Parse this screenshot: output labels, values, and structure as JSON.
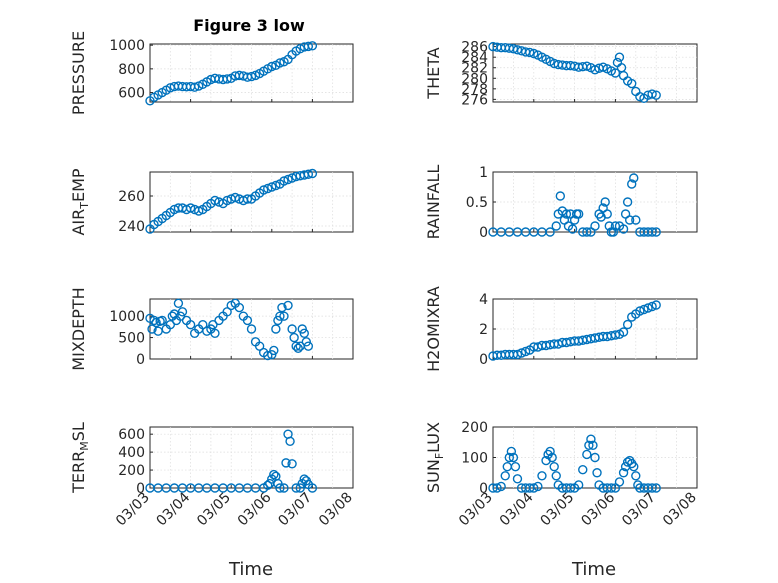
{
  "chart_data": {
    "type": "scatter",
    "title": "Figure 3 low",
    "marker": "circle",
    "colors": {
      "series": "#0072BD",
      "axes": "#262626",
      "grid": "#dcdcdc"
    },
    "grid": true,
    "x_ticks": [
      "03/03",
      "03/04",
      "03/05",
      "03/06",
      "03/07",
      "03/08"
    ],
    "xlabel": "Time",
    "panels": [
      {
        "id": "pressure",
        "ylabel": "PRESSURE",
        "ylabel_sub": "",
        "ylabel_tail": "",
        "ylim": [
          520,
          1010
        ],
        "yticks": [
          600,
          800,
          1000
        ],
        "ytick_labels": [
          "600",
          "800",
          "1000"
        ],
        "x": [
          0,
          0.1,
          0.2,
          0.3,
          0.4,
          0.5,
          0.6,
          0.7,
          0.8,
          0.9,
          1.0,
          1.1,
          1.2,
          1.3,
          1.4,
          1.5,
          1.6,
          1.7,
          1.8,
          1.9,
          2.0,
          2.1,
          2.2,
          2.3,
          2.4,
          2.5,
          2.6,
          2.7,
          2.8,
          2.9,
          3.0,
          3.1,
          3.2,
          3.3,
          3.4,
          3.5,
          3.6,
          3.7,
          3.8,
          3.9,
          4.0
        ],
        "y": [
          530,
          560,
          580,
          600,
          620,
          640,
          650,
          655,
          650,
          648,
          650,
          645,
          655,
          670,
          690,
          710,
          720,
          715,
          710,
          715,
          720,
          740,
          745,
          740,
          730,
          735,
          745,
          760,
          780,
          800,
          820,
          830,
          850,
          860,
          880,
          920,
          950,
          970,
          985,
          990,
          995
        ]
      },
      {
        "id": "theta",
        "ylabel": "THETA",
        "ylabel_sub": "",
        "ylabel_tail": "",
        "ylim": [
          275.5,
          286.5
        ],
        "yticks": [
          276,
          278,
          280,
          282,
          284,
          286
        ],
        "ytick_labels": [
          "276",
          "278",
          "280",
          "282",
          "284",
          "286"
        ],
        "x": [
          0,
          0.1,
          0.2,
          0.3,
          0.4,
          0.5,
          0.6,
          0.7,
          0.8,
          0.9,
          1.0,
          1.1,
          1.2,
          1.3,
          1.4,
          1.5,
          1.6,
          1.7,
          1.8,
          1.9,
          2.0,
          2.1,
          2.2,
          2.3,
          2.4,
          2.5,
          2.6,
          2.7,
          2.8,
          2.9,
          3.0,
          3.05,
          3.1,
          3.15,
          3.2,
          3.3,
          3.4,
          3.5,
          3.6,
          3.7,
          3.8,
          3.9,
          4.0
        ],
        "y": [
          286,
          285.9,
          285.8,
          285.8,
          285.7,
          285.6,
          285.4,
          285.2,
          285,
          284.9,
          284.7,
          284.4,
          284,
          283.6,
          283.2,
          282.8,
          282.6,
          282.5,
          282.4,
          282.4,
          282.3,
          282.1,
          282.2,
          282.3,
          282.0,
          281.6,
          281.9,
          282.1,
          281.8,
          281.4,
          281.0,
          283.0,
          284.0,
          282.0,
          280.5,
          279.5,
          279.0,
          277.5,
          276.5,
          276.2,
          276.8,
          277.0,
          276.8
        ]
      },
      {
        "id": "air_temp",
        "ylabel": "AIR",
        "ylabel_sub": "T",
        "ylabel_tail": "EMP",
        "ylim": [
          236,
          276
        ],
        "yticks": [
          240,
          260
        ],
        "ytick_labels": [
          "240",
          "260"
        ],
        "x": [
          0,
          0.1,
          0.2,
          0.3,
          0.4,
          0.5,
          0.6,
          0.7,
          0.8,
          0.9,
          1.0,
          1.1,
          1.2,
          1.3,
          1.4,
          1.5,
          1.6,
          1.7,
          1.8,
          1.9,
          2.0,
          2.1,
          2.2,
          2.3,
          2.4,
          2.5,
          2.6,
          2.7,
          2.8,
          2.9,
          3.0,
          3.1,
          3.2,
          3.3,
          3.4,
          3.5,
          3.6,
          3.7,
          3.8,
          3.9,
          4.0
        ],
        "y": [
          238,
          241,
          243,
          245,
          247,
          249,
          251,
          252,
          252,
          251,
          252,
          251,
          250,
          251,
          253,
          255,
          257,
          256,
          255,
          257,
          258,
          259,
          258,
          257,
          258,
          258,
          260,
          262,
          264,
          265,
          266,
          267,
          268,
          270,
          271,
          272,
          273,
          273.5,
          274,
          274.5,
          275
        ]
      },
      {
        "id": "rainfall",
        "ylabel": "RAINFALL",
        "ylabel_sub": "",
        "ylabel_tail": "",
        "ylim": [
          0,
          1
        ],
        "yticks": [
          0,
          0.5,
          1
        ],
        "ytick_labels": [
          "0",
          "0.5",
          "1"
        ],
        "x": [
          0,
          0.2,
          0.4,
          0.6,
          0.8,
          1.0,
          1.2,
          1.4,
          1.55,
          1.6,
          1.65,
          1.7,
          1.75,
          1.8,
          1.85,
          1.9,
          1.95,
          2.0,
          2.05,
          2.1,
          2.2,
          2.3,
          2.4,
          2.5,
          2.6,
          2.65,
          2.7,
          2.75,
          2.8,
          2.85,
          2.9,
          2.95,
          3.0,
          3.1,
          3.2,
          3.25,
          3.3,
          3.35,
          3.4,
          3.45,
          3.5,
          3.6,
          3.7,
          3.8,
          3.9,
          4.0
        ],
        "y": [
          0,
          0,
          0,
          0,
          0,
          0,
          0,
          0,
          0.1,
          0.3,
          0.6,
          0.35,
          0.2,
          0.3,
          0.1,
          0.3,
          0.05,
          0.2,
          0.3,
          0.3,
          0,
          0,
          0,
          0.1,
          0.3,
          0.25,
          0.4,
          0.5,
          0.3,
          0.1,
          0,
          0,
          0.1,
          0.1,
          0.05,
          0.3,
          0.5,
          0.2,
          0.8,
          0.9,
          0.2,
          0,
          0,
          0,
          0,
          0
        ]
      },
      {
        "id": "mixdepth",
        "ylabel": "MIXDEPTH",
        "ylabel_sub": "",
        "ylabel_tail": "",
        "ylim": [
          0,
          1400
        ],
        "yticks": [
          0,
          500,
          1000
        ],
        "ytick_labels": [
          "0",
          "500",
          "1000"
        ],
        "x": [
          0,
          0.05,
          0.1,
          0.15,
          0.2,
          0.25,
          0.3,
          0.4,
          0.5,
          0.55,
          0.6,
          0.65,
          0.7,
          0.75,
          0.8,
          0.9,
          1.0,
          1.1,
          1.2,
          1.3,
          1.4,
          1.5,
          1.55,
          1.6,
          1.7,
          1.8,
          1.9,
          2.0,
          2.1,
          2.2,
          2.3,
          2.4,
          2.5,
          2.6,
          2.7,
          2.8,
          2.9,
          3.0,
          3.05,
          3.1,
          3.15,
          3.2,
          3.25,
          3.3,
          3.4,
          3.5,
          3.55,
          3.6,
          3.65,
          3.7,
          3.75,
          3.8,
          3.85,
          3.9
        ],
        "y": [
          950,
          700,
          900,
          850,
          650,
          880,
          900,
          700,
          800,
          1000,
          1050,
          900,
          1300,
          1000,
          1100,
          900,
          800,
          600,
          700,
          800,
          650,
          700,
          800,
          600,
          900,
          1000,
          1100,
          1250,
          1300,
          1200,
          1000,
          900,
          700,
          400,
          300,
          150,
          80,
          100,
          200,
          700,
          900,
          1000,
          1200,
          1000,
          1250,
          700,
          500,
          300,
          250,
          300,
          700,
          600,
          400,
          300
        ]
      },
      {
        "id": "h2omixra",
        "ylabel": "H2OMIXRA",
        "ylabel_sub": "",
        "ylabel_tail": "",
        "ylim": [
          0,
          4
        ],
        "yticks": [
          0,
          2,
          4
        ],
        "ytick_labels": [
          "0",
          "2",
          "4"
        ],
        "x": [
          0,
          0.1,
          0.2,
          0.3,
          0.4,
          0.5,
          0.6,
          0.7,
          0.8,
          0.9,
          1.0,
          1.1,
          1.2,
          1.3,
          1.4,
          1.5,
          1.6,
          1.7,
          1.8,
          1.9,
          2.0,
          2.1,
          2.2,
          2.3,
          2.4,
          2.5,
          2.6,
          2.7,
          2.8,
          2.9,
          3.0,
          3.1,
          3.2,
          3.3,
          3.4,
          3.5,
          3.6,
          3.7,
          3.8,
          3.9,
          4.0
        ],
        "y": [
          0.2,
          0.25,
          0.25,
          0.3,
          0.3,
          0.3,
          0.3,
          0.4,
          0.5,
          0.6,
          0.8,
          0.8,
          0.9,
          0.9,
          0.95,
          1.0,
          1.0,
          1.1,
          1.1,
          1.15,
          1.2,
          1.2,
          1.25,
          1.3,
          1.35,
          1.4,
          1.45,
          1.5,
          1.5,
          1.55,
          1.6,
          1.65,
          1.8,
          2.3,
          2.8,
          3.0,
          3.2,
          3.3,
          3.4,
          3.5,
          3.6
        ]
      },
      {
        "id": "terr_msl",
        "ylabel": "TERR",
        "ylabel_sub": "M",
        "ylabel_tail": "SL",
        "ylim": [
          0,
          680
        ],
        "yticks": [
          0,
          200,
          400,
          600
        ],
        "ytick_labels": [
          "0",
          "200",
          "400",
          "600"
        ],
        "x": [
          0,
          0.2,
          0.4,
          0.6,
          0.8,
          1.0,
          1.2,
          1.4,
          1.6,
          1.8,
          2.0,
          2.2,
          2.4,
          2.6,
          2.8,
          2.9,
          2.95,
          3.0,
          3.05,
          3.1,
          3.15,
          3.2,
          3.3,
          3.35,
          3.4,
          3.45,
          3.5,
          3.6,
          3.7,
          3.75,
          3.8,
          3.85,
          3.9,
          4.0
        ],
        "y": [
          0,
          0,
          0,
          0,
          0,
          0,
          0,
          0,
          0,
          0,
          0,
          0,
          0,
          0,
          0,
          30,
          50,
          100,
          150,
          130,
          50,
          0,
          0,
          280,
          600,
          520,
          270,
          0,
          0,
          50,
          100,
          80,
          40,
          0
        ]
      },
      {
        "id": "sun_flux",
        "ylabel": "SUN",
        "ylabel_sub": "F",
        "ylabel_tail": "LUX",
        "ylim": [
          0,
          200
        ],
        "yticks": [
          0,
          100,
          200
        ],
        "ytick_labels": [
          "0",
          "100",
          "200"
        ],
        "x": [
          0,
          0.1,
          0.2,
          0.3,
          0.35,
          0.4,
          0.45,
          0.5,
          0.55,
          0.6,
          0.7,
          0.8,
          0.9,
          1.0,
          1.1,
          1.2,
          1.3,
          1.35,
          1.4,
          1.45,
          1.5,
          1.55,
          1.6,
          1.7,
          1.8,
          1.9,
          2.0,
          2.1,
          2.2,
          2.3,
          2.35,
          2.4,
          2.45,
          2.5,
          2.55,
          2.6,
          2.7,
          2.8,
          2.9,
          3.0,
          3.1,
          3.2,
          3.25,
          3.3,
          3.35,
          3.4,
          3.45,
          3.5,
          3.55,
          3.6,
          3.7,
          3.8,
          3.9,
          4.0
        ],
        "y": [
          0,
          0,
          5,
          40,
          70,
          100,
          120,
          100,
          70,
          30,
          0,
          0,
          0,
          0,
          5,
          40,
          90,
          110,
          120,
          100,
          70,
          40,
          10,
          0,
          0,
          0,
          0,
          10,
          60,
          110,
          140,
          160,
          140,
          100,
          50,
          10,
          0,
          0,
          0,
          0,
          20,
          50,
          70,
          85,
          90,
          80,
          70,
          40,
          10,
          0,
          0,
          0,
          0,
          0
        ]
      }
    ]
  }
}
